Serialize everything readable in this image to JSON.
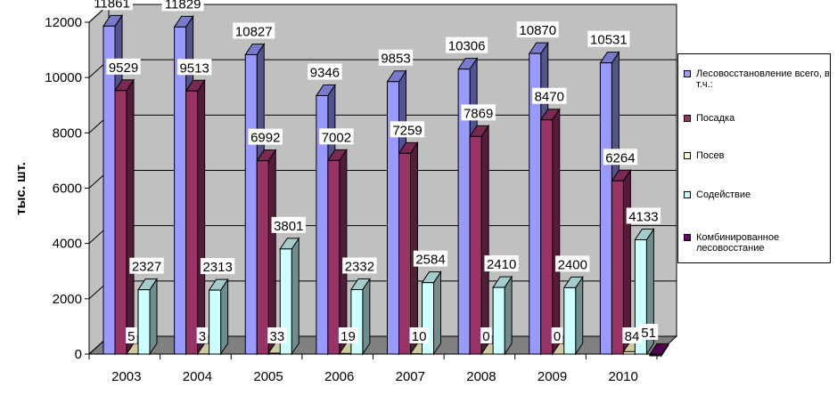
{
  "chart_data": {
    "type": "bar",
    "ylabel": "тыс. шт.",
    "xlabel": "",
    "title": "",
    "ylim": [
      0,
      12000
    ],
    "yticks": [
      0,
      2000,
      4000,
      6000,
      8000,
      10000,
      12000
    ],
    "grid": true,
    "three_d": true,
    "legend_position": "right",
    "categories": [
      "2003",
      "2004",
      "2005",
      "2006",
      "2007",
      "2008",
      "2009",
      "2010"
    ],
    "series": [
      {
        "name": "Лесовосстановление всего, в т.ч.:",
        "color": "#9999ff",
        "values": [
          11861,
          11829,
          10827,
          9346,
          9853,
          10306,
          10870,
          10531
        ]
      },
      {
        "name": "Посадка",
        "color": "#993366",
        "values": [
          9529,
          9513,
          6992,
          7002,
          7259,
          7869,
          8470,
          6264
        ]
      },
      {
        "name": "Посев",
        "color": "#ffffcc",
        "values": [
          5,
          3,
          33,
          19,
          10,
          0,
          0,
          84
        ]
      },
      {
        "name": "Содействие",
        "color": "#ccffff",
        "values": [
          2327,
          2313,
          3801,
          2332,
          2584,
          2410,
          2400,
          4133
        ]
      },
      {
        "name": "Комбинированное лесовосстание",
        "color": "#660066",
        "values": [
          null,
          null,
          null,
          null,
          null,
          null,
          null,
          51
        ]
      }
    ]
  }
}
